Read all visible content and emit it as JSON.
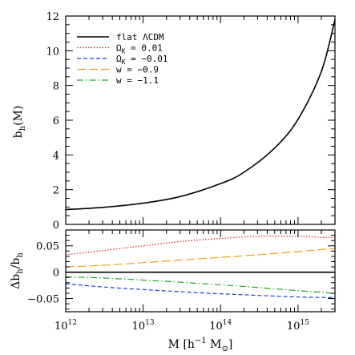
{
  "chart_data": [
    {
      "type": "line",
      "name": "top-panel",
      "xscale": "log",
      "xlim": [
        1000000000000.0,
        3000000000000000.0
      ],
      "ylim": [
        0,
        12
      ],
      "yticks": [
        0,
        2,
        4,
        6,
        8,
        10,
        12
      ],
      "ylabel_main": "b",
      "ylabel_sub": "h",
      "ylabel_tail": "(M)",
      "legend_position": "top-left",
      "series": [
        {
          "name": "flat ΛCDM",
          "color": "#000000",
          "dash": "solid",
          "x": [
            1000000000000.0,
            3000000000000.0,
            10000000000000.0,
            30000000000000.0,
            100000000000000.0,
            200000000000000.0,
            500000000000000.0,
            1000000000000000.0,
            2000000000000000.0,
            3000000000000000.0
          ],
          "y": [
            0.85,
            0.98,
            1.22,
            1.6,
            2.35,
            3.0,
            4.4,
            6.05,
            8.8,
            11.8
          ]
        }
      ],
      "legend_entries": [
        {
          "text": "flat ΛCDM",
          "color": "#000000",
          "dash": "solid"
        },
        {
          "text": "Ω",
          "sub": "K",
          "tail": " = 0.01",
          "color": "#d62728",
          "dash": "dotted"
        },
        {
          "text": "Ω",
          "sub": "K",
          "tail": " = −0.01",
          "color": "#1f3fd0",
          "dash": "dashed"
        },
        {
          "text": "w = −0.9",
          "color": "#f0a020",
          "dash": "longdash"
        },
        {
          "text": "w = −1.1",
          "color": "#22aa22",
          "dash": "dashdot"
        }
      ]
    },
    {
      "type": "line",
      "name": "bottom-panel",
      "xscale": "log",
      "xlim": [
        1000000000000.0,
        3000000000000000.0
      ],
      "ylim": [
        -0.075,
        0.08
      ],
      "yticks": [
        0.05,
        0,
        -0.05
      ],
      "ytick_labels": [
        "0.05",
        "0",
        "−0.05"
      ],
      "xtick_exponents": [
        "12",
        "13",
        "14",
        "15"
      ],
      "xtick_base": "10",
      "ylabel": "Δb",
      "ylabel_sub": "h",
      "ylabel_mid": "/b",
      "ylabel_sub2": "h",
      "xlabel_pre": "M  [h",
      "xlabel_sup": "−1",
      "xlabel_mid": " M",
      "xlabel_sub": "⊙",
      "xlabel_post": "]",
      "series": [
        {
          "color": "#000000",
          "dash": "solid",
          "x": [
            1000000000000.0,
            3000000000000000.0
          ],
          "y": [
            0,
            0
          ]
        },
        {
          "color": "#d62728",
          "dash": "dotted",
          "x": [
            1000000000000.0,
            3000000000000.0,
            10000000000000.0,
            30000000000000.0,
            100000000000000.0,
            300000000000000.0,
            1000000000000000.0,
            2000000000000000.0,
            3000000000000000.0
          ],
          "y": [
            0.033,
            0.041,
            0.05,
            0.058,
            0.064,
            0.068,
            0.068,
            0.066,
            0.066
          ]
        },
        {
          "color": "#f0a020",
          "dash": "longdash",
          "x": [
            1000000000000.0,
            3000000000000.0,
            10000000000000.0,
            30000000000000.0,
            100000000000000.0,
            300000000000000.0,
            1000000000000000.0,
            2000000000000000.0,
            3000000000000000.0
          ],
          "y": [
            0.01,
            0.013,
            0.018,
            0.023,
            0.028,
            0.033,
            0.039,
            0.043,
            0.045
          ]
        },
        {
          "color": "#22aa22",
          "dash": "dashdot",
          "x": [
            1000000000000.0,
            3000000000000.0,
            10000000000000.0,
            30000000000000.0,
            100000000000000.0,
            300000000000000.0,
            1000000000000000.0,
            2000000000000000.0,
            3000000000000000.0
          ],
          "y": [
            -0.009,
            -0.011,
            -0.015,
            -0.019,
            -0.024,
            -0.029,
            -0.035,
            -0.038,
            -0.041
          ]
        },
        {
          "color": "#1f3fd0",
          "dash": "dashed",
          "x": [
            1000000000000.0,
            3000000000000.0,
            10000000000000.0,
            30000000000000.0,
            100000000000000.0,
            300000000000000.0,
            1000000000000000.0,
            2000000000000000.0,
            3000000000000000.0
          ],
          "y": [
            -0.022,
            -0.028,
            -0.033,
            -0.037,
            -0.041,
            -0.044,
            -0.047,
            -0.048,
            -0.048
          ]
        }
      ]
    }
  ]
}
